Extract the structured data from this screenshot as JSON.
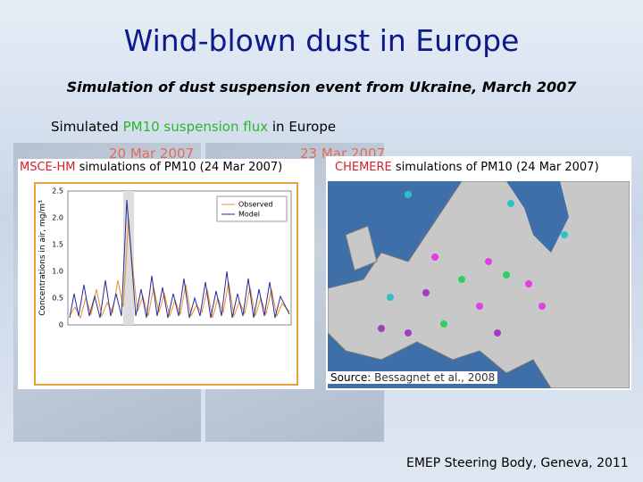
{
  "header": {
    "title": "Wind-blown dust in Europe",
    "subtitle": "Simulation of dust suspension event from Ukraine, March 2007"
  },
  "section": {
    "lead": "Simulated",
    "highlight": "PM10 suspension flux",
    "tail": "in Europe"
  },
  "background_dates": [
    "20 Mar 2007",
    "23 Mar 2007"
  ],
  "left_panel": {
    "model": "MSCE-HM",
    "caption": "simulations of PM10 (24 Mar 2007)",
    "plot": {
      "y_label": "Concentrations in air, mg/m³",
      "y_ticks": [
        "0",
        "0.5",
        "1.0",
        "1.5",
        "2.0",
        "2.5"
      ],
      "legend": [
        "Observed",
        "Model"
      ]
    }
  },
  "right_panel": {
    "model": "CHEMERE",
    "caption": "simulations of PM10 (24 Mar 2007)",
    "source_label": "Source:",
    "source_text": "Bessagnet et al., 2008"
  },
  "footer": "EMEP Steering Body, Geneva, 2011"
}
